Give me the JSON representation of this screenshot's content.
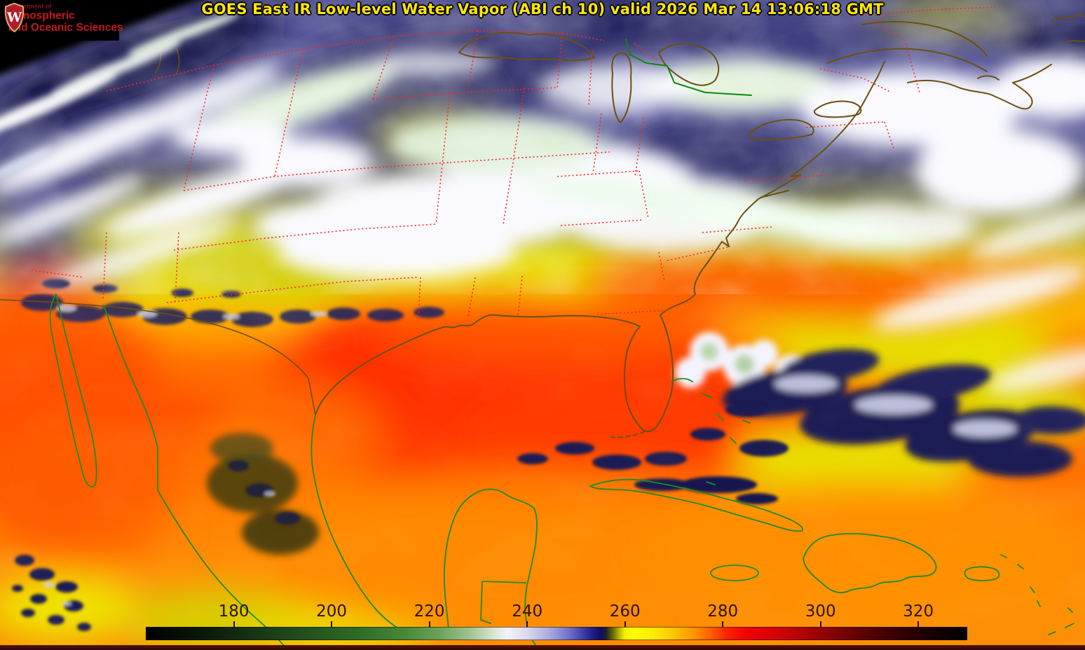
{
  "header": {
    "title": "GOES East IR Low-level Water Vapor (ABI ch 10) valid 2026 Mar 14 13:06:18 GMT",
    "title_color": "#ffe702"
  },
  "logo": {
    "monogram": "W",
    "department": "Department of",
    "line1": "Atmospheric",
    "line2": "and Oceanic Sciences",
    "text_color": "#c5161f",
    "crest_red": "#b01e2e",
    "crest_gold": "#d9b46b"
  },
  "colorbar": {
    "min": 162,
    "max": 330,
    "tick_labels": [
      180,
      200,
      220,
      240,
      260,
      280,
      300,
      320
    ],
    "gradient_stops": [
      [
        0,
        "#000000"
      ],
      [
        7.7,
        "#0c1c08"
      ],
      [
        16.7,
        "#1d4517"
      ],
      [
        25.6,
        "#2e6a24"
      ],
      [
        31.5,
        "#478838"
      ],
      [
        35.7,
        "#6ba259"
      ],
      [
        39.3,
        "#9dc18d"
      ],
      [
        42.3,
        "#d7e5d1"
      ],
      [
        44.0,
        "#f3f3f5"
      ],
      [
        46.4,
        "#d9d9ef"
      ],
      [
        48.8,
        "#b1b1e1"
      ],
      [
        51.2,
        "#7979cd"
      ],
      [
        53.0,
        "#4545af"
      ],
      [
        54.2,
        "#23238d"
      ],
      [
        55.4,
        "#0e0e63"
      ],
      [
        56.0,
        "#1d1d31"
      ],
      [
        56.8,
        "#61610b"
      ],
      [
        57.7,
        "#bbbb00"
      ],
      [
        58.3,
        "#f1f100"
      ],
      [
        59.5,
        "#ffff00"
      ],
      [
        61.9,
        "#ffe900"
      ],
      [
        64.3,
        "#ffc500"
      ],
      [
        66.7,
        "#ff9500"
      ],
      [
        69.0,
        "#ff5b00"
      ],
      [
        70.8,
        "#ff2100"
      ],
      [
        73.2,
        "#f10000"
      ],
      [
        77.4,
        "#cd0404"
      ],
      [
        82.1,
        "#970404"
      ],
      [
        86.9,
        "#610202"
      ],
      [
        91.7,
        "#350000"
      ],
      [
        96.4,
        "#150000"
      ],
      [
        100,
        "#000000"
      ]
    ]
  },
  "map_overlay_colors": {
    "state_borders": "#ff2323",
    "us_coastlines": "#6b5010",
    "mexico_caribbean_coastlines": "#1e8c1e"
  }
}
